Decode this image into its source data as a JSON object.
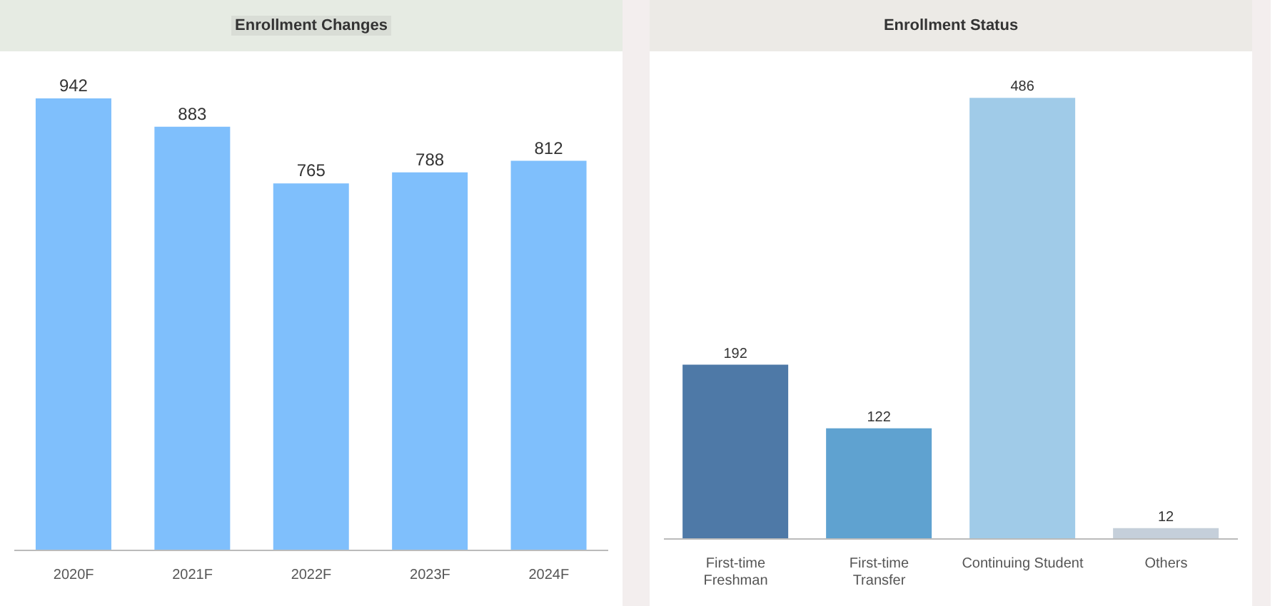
{
  "chart_data": [
    {
      "type": "bar",
      "title": "Enrollment Changes",
      "categories": [
        "2020F",
        "2021F",
        "2022F",
        "2023F",
        "2024F"
      ],
      "values": [
        942,
        883,
        765,
        788,
        812
      ],
      "color": "#7fbffc",
      "data_labels": true
    },
    {
      "type": "bar",
      "title": "Enrollment Status",
      "categories": [
        "First-time Freshman",
        "First-time Transfer",
        "Continuing Student",
        "Others"
      ],
      "values": [
        192,
        122,
        486,
        12
      ],
      "colors": [
        "#4e79a7",
        "#5fa2d0",
        "#a0cbe8",
        "#c5cfda"
      ],
      "data_labels": true
    }
  ]
}
